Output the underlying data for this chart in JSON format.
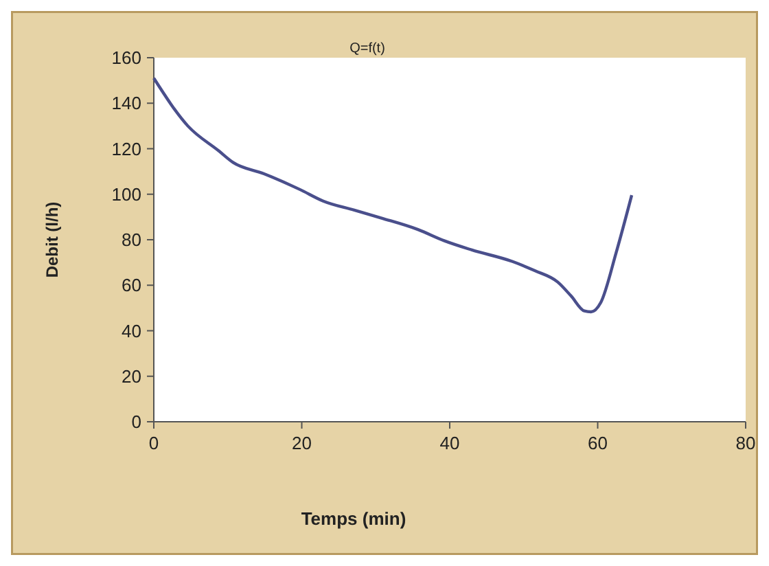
{
  "chart_data": {
    "type": "line",
    "title": "Q=f(t)",
    "xlabel": "Temps (min)",
    "ylabel": "Debit (l/h)",
    "x": [
      0,
      4.6,
      8.8,
      10.7,
      14.9,
      19.8,
      22.9,
      27.1,
      30.8,
      35.7,
      39.3,
      43,
      48.5,
      51.5,
      54.6,
      56.4,
      58.2,
      59.1,
      60.4,
      62.5,
      64.6
    ],
    "series": [
      {
        "color": "#4a4f8c",
        "values": [
          151,
          130,
          119,
          114,
          109,
          102,
          97,
          93,
          89.5,
          84.5,
          79.5,
          75.5,
          70.4,
          66.4,
          61.4,
          55.3,
          48.7,
          48.3,
          52.3,
          74.4,
          99.6
        ]
      }
    ],
    "xlim": [
      0,
      80
    ],
    "xticks": [
      0,
      20,
      40,
      60,
      80
    ],
    "ylim": [
      0,
      160
    ],
    "yticks": [
      0,
      20,
      40,
      60,
      80,
      100,
      120,
      140,
      160
    ],
    "grid": false,
    "marker": "none",
    "line_style": "solid"
  }
}
